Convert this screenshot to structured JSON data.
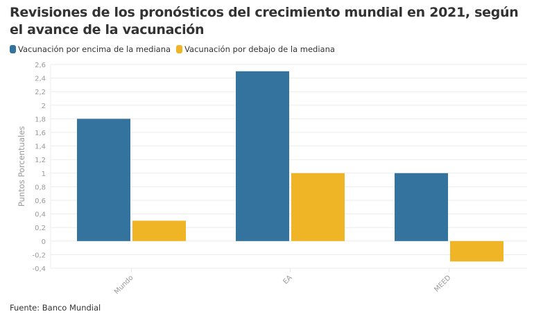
{
  "title": "Revisiones de los pronósticos del crecimiento mundial en 2021, según el avance de la vacunación",
  "source": "Fuente: Banco Mundial",
  "chart_data": {
    "type": "bar",
    "categories": [
      "Mundo",
      "EA",
      "MEED"
    ],
    "series": [
      {
        "name": "Vacunación por encima de la mediana",
        "color": "#33739e",
        "values": [
          1.8,
          2.5,
          1.0
        ]
      },
      {
        "name": "Vacunación por debajo de la mediana",
        "color": "#efb526",
        "values": [
          0.3,
          1.0,
          -0.3
        ]
      }
    ],
    "ylabel": "Puntos Porcentuales",
    "xlabel": "",
    "ylim": [
      -0.4,
      2.6
    ],
    "yticks": [
      "-0,4",
      "-0,2",
      "0",
      "0,2",
      "0,4",
      "0,6",
      "0,8",
      "1",
      "1,2",
      "1,4",
      "1,6",
      "1,8",
      "2",
      "2,2",
      "2,4",
      "2,6"
    ],
    "grid": true,
    "legend": "top-left"
  }
}
